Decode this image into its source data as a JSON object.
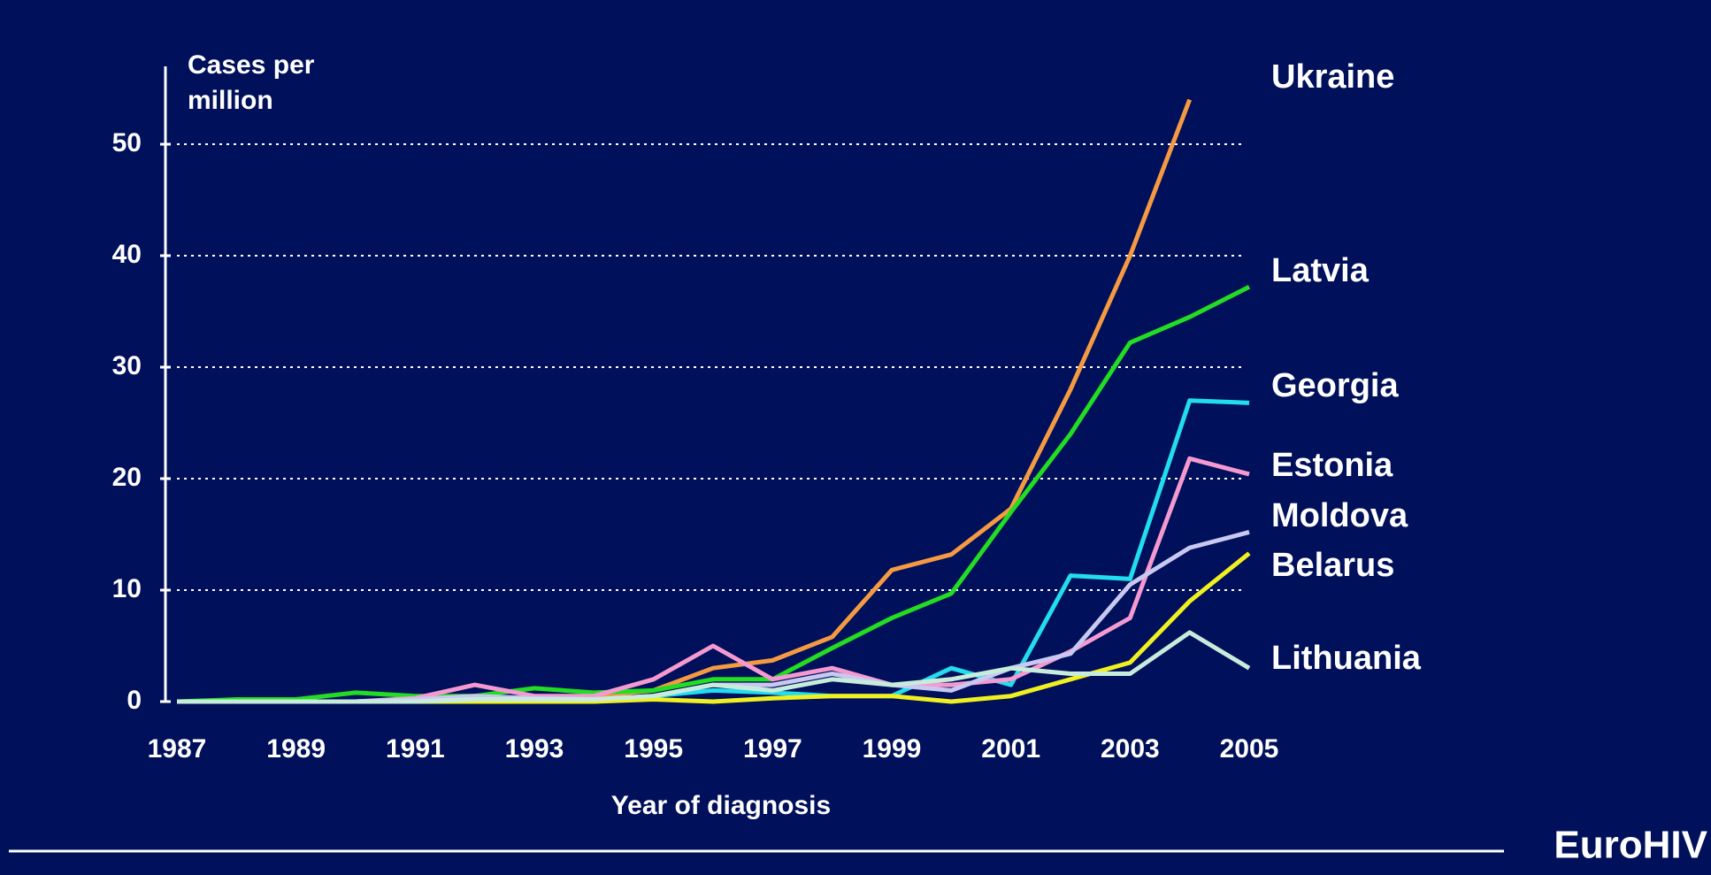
{
  "chart_data": {
    "type": "line",
    "y_label": "Cases per million",
    "x_label": "Year of diagnosis",
    "footer": "EuroHIV",
    "x": [
      1987,
      1988,
      1989,
      1990,
      1991,
      1992,
      1993,
      1994,
      1995,
      1996,
      1997,
      1998,
      1999,
      2000,
      2001,
      2002,
      2003,
      2004,
      2005
    ],
    "xlim": [
      1987,
      2005
    ],
    "xticks": [
      1987,
      1989,
      1991,
      1993,
      1995,
      1997,
      1999,
      2001,
      2003,
      2005
    ],
    "ylim": [
      0,
      55
    ],
    "yticks": [
      0,
      10,
      20,
      30,
      40,
      50
    ],
    "grid": true,
    "series": [
      {
        "name": "Ukraine",
        "color": "#f59a42",
        "values": [
          0,
          0,
          0,
          0,
          0.2,
          0.2,
          0.3,
          0.5,
          1,
          3,
          3.7,
          5.8,
          11.8,
          13.2,
          17.3,
          28,
          40,
          54,
          null
        ]
      },
      {
        "name": "Latvia",
        "color": "#22dd22",
        "values": [
          0,
          0.2,
          0.2,
          0.8,
          0.5,
          0.5,
          1.2,
          0.8,
          1,
          2,
          2,
          4.8,
          7.5,
          9.7,
          17,
          24,
          32.2,
          34.5,
          37.2
        ]
      },
      {
        "name": "Georgia",
        "color": "#22ddee",
        "values": [
          0,
          0,
          0,
          0,
          0,
          0,
          0,
          0,
          0.5,
          1,
          0.8,
          0.5,
          0.5,
          3,
          1.5,
          11.3,
          11,
          27,
          26.8
        ]
      },
      {
        "name": "Estonia",
        "color": "#f59ad0",
        "values": [
          0,
          0,
          0,
          0,
          0.3,
          1.5,
          0.5,
          0.5,
          2,
          5,
          2,
          3,
          1.5,
          1.5,
          2,
          4.5,
          7.5,
          21.8,
          20.4
        ]
      },
      {
        "name": "Moldova",
        "color": "#c8c8f0",
        "values": [
          0,
          0,
          0,
          0,
          0.2,
          0.5,
          0.3,
          0.2,
          0.5,
          1.5,
          1.5,
          2.5,
          1.5,
          1,
          3,
          4.3,
          10.5,
          13.8,
          15.2
        ]
      },
      {
        "name": "Belarus",
        "color": "#f0f020",
        "values": [
          0,
          0,
          0,
          0,
          0,
          0,
          0,
          0,
          0.2,
          0,
          0.3,
          0.5,
          0.5,
          0,
          0.5,
          2,
          3.5,
          9,
          13.3
        ]
      },
      {
        "name": "Lithuania",
        "color": "#c8ecdc",
        "values": [
          0,
          0,
          0,
          0,
          0,
          0.2,
          0.2,
          0.2,
          0.5,
          1.5,
          1,
          2,
          1.5,
          2,
          3,
          2.5,
          2.5,
          6.2,
          3
        ]
      }
    ]
  }
}
